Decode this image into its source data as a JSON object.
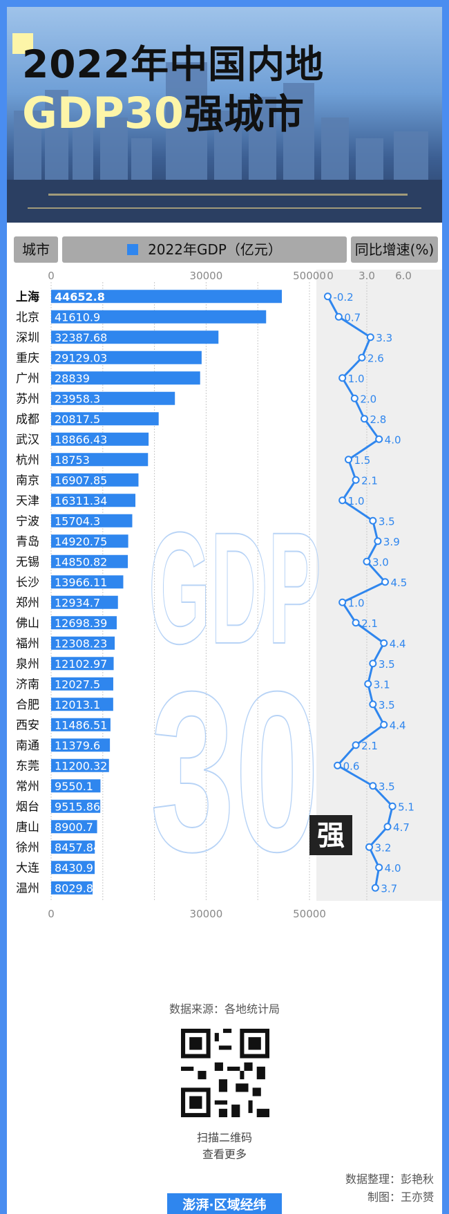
{
  "title": {
    "line1": "2022年中国内地",
    "highlight": "GDP30",
    "line2_rest": "强城市"
  },
  "header": {
    "city": "城市",
    "gdp": "2022年GDP（亿元）",
    "growth": "同比增速(%)"
  },
  "watermark": {
    "top": "GDP",
    "bottom": "30",
    "badge": "强"
  },
  "source": "数据来源：各地统计局",
  "qr": {
    "line1": "扫描二维码",
    "line2": "查看更多"
  },
  "credits": {
    "line1": "数据整理：彭艳秋",
    "line2": "制图：王亦赟"
  },
  "logo": "澎湃·区域经纬",
  "colors": {
    "bar": "#2f86ee",
    "line": "#2f86ee",
    "frame": "#4a8df0",
    "highlight": "#fdf5a8"
  },
  "chart_data": {
    "type": "bar",
    "categories": [
      "上海",
      "北京",
      "深圳",
      "重庆",
      "广州",
      "苏州",
      "成都",
      "武汉",
      "杭州",
      "南京",
      "天津",
      "宁波",
      "青岛",
      "无锡",
      "长沙",
      "郑州",
      "佛山",
      "福州",
      "泉州",
      "济南",
      "合肥",
      "西安",
      "南通",
      "东莞",
      "常州",
      "烟台",
      "唐山",
      "徐州",
      "大连",
      "温州"
    ],
    "series": [
      {
        "name": "2022年GDP（亿元）",
        "type": "bar",
        "values": [
          44652.8,
          41610.9,
          32387.68,
          29129.03,
          28839,
          23958.3,
          20817.5,
          18866.43,
          18753,
          16907.85,
          16311.34,
          15704.3,
          14920.75,
          14850.82,
          13966.11,
          12934.7,
          12698.39,
          12308.23,
          12102.97,
          12027.5,
          12013.1,
          11486.51,
          11379.6,
          11200.32,
          9550.1,
          9515.86,
          8900.7,
          8457.84,
          8430.9,
          8029.8
        ],
        "labels": [
          "44652.8",
          "41610.9",
          "32387.68",
          "29129.03",
          "28839",
          "23958.3",
          "20817.5",
          "18866.43",
          "18753",
          "16907.85",
          "16311.34",
          "15704.3",
          "14920.75",
          "14850.82",
          "13966.11",
          "12934.7",
          "12698.39",
          "12308.23",
          "12102.97",
          "12027.5",
          "12013.1",
          "11486.51",
          "11379.6",
          "11200.32",
          "9550.1",
          "9515.86",
          "8900.7",
          "8457.84",
          "8430.9",
          "8029.8"
        ]
      },
      {
        "name": "同比增速(%)",
        "type": "line",
        "values": [
          -0.2,
          0.7,
          3.3,
          2.6,
          1.0,
          2.0,
          2.8,
          4.0,
          1.5,
          2.1,
          1.0,
          3.5,
          3.9,
          3.0,
          4.5,
          1.0,
          2.1,
          4.4,
          3.5,
          3.1,
          3.5,
          4.4,
          2.1,
          0.6,
          3.5,
          5.1,
          4.7,
          3.2,
          4.0,
          3.7
        ],
        "labels": [
          "-0.2",
          "0.7",
          "3.3",
          "2.6",
          "1.0",
          "2.0",
          "2.8",
          "4.0",
          "1.5",
          "2.1",
          "1.0",
          "3.5",
          "3.9",
          "3.0",
          "4.5",
          "1.0",
          "2.1",
          "4.4",
          "3.5",
          "3.1",
          "3.5",
          "4.4",
          "2.1",
          "0.6",
          "3.5",
          "5.1",
          "4.7",
          "3.2",
          "4.0",
          "3.7"
        ]
      }
    ],
    "gdp_axis": {
      "ticks": [
        0,
        30000,
        50000
      ],
      "tick_labels": [
        "0",
        "30000",
        "50000"
      ],
      "range": [
        0,
        50000
      ]
    },
    "growth_axis": {
      "ticks": [
        0,
        3.0,
        6.0
      ],
      "tick_labels": [
        "0",
        "3.0",
        "6.0"
      ],
      "range": [
        0,
        6.0
      ]
    }
  }
}
